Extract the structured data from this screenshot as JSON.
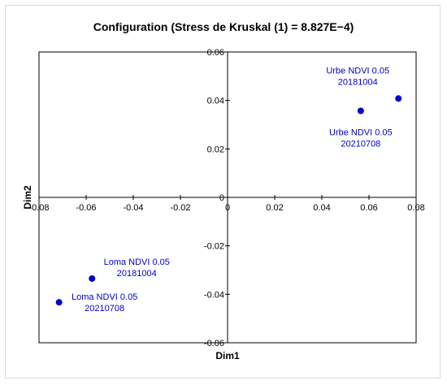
{
  "chart_data": {
    "type": "scatter",
    "title": "Configuration  (Stress de Kruskal (1) = 8.827E−4)",
    "xlabel": "Dim1",
    "ylabel": "Dim2",
    "xlim": [
      -0.08,
      0.08
    ],
    "ylim": [
      -0.06,
      0.06
    ],
    "x_ticks": [
      "-0.08",
      "-0.06",
      "-0.04",
      "-0.02",
      "0",
      "0.02",
      "0.04",
      "0.06",
      "0.08"
    ],
    "y_ticks": [
      "0.06",
      "0.04",
      "0.02",
      "0",
      "-0.02",
      "-0.04",
      "-0.06"
    ],
    "grid": false,
    "point_color": "#0000cc",
    "points": [
      {
        "label_line1": "Urbe NDVI 0.05",
        "label_line2": "20181004",
        "x": 0.0725,
        "y": 0.0408,
        "label_position": "above-left"
      },
      {
        "label_line1": "Urbe NDVI 0.05",
        "label_line2": "20210708",
        "x": 0.0565,
        "y": 0.0357,
        "label_position": "below"
      },
      {
        "label_line1": "Loma NDVI 0.05",
        "label_line2": "20181004",
        "x": -0.0575,
        "y": -0.0335,
        "label_position": "above-right"
      },
      {
        "label_line1": "Loma NDVI 0.05",
        "label_line2": "20210708",
        "x": -0.0715,
        "y": -0.0433,
        "label_position": "right"
      }
    ]
  }
}
